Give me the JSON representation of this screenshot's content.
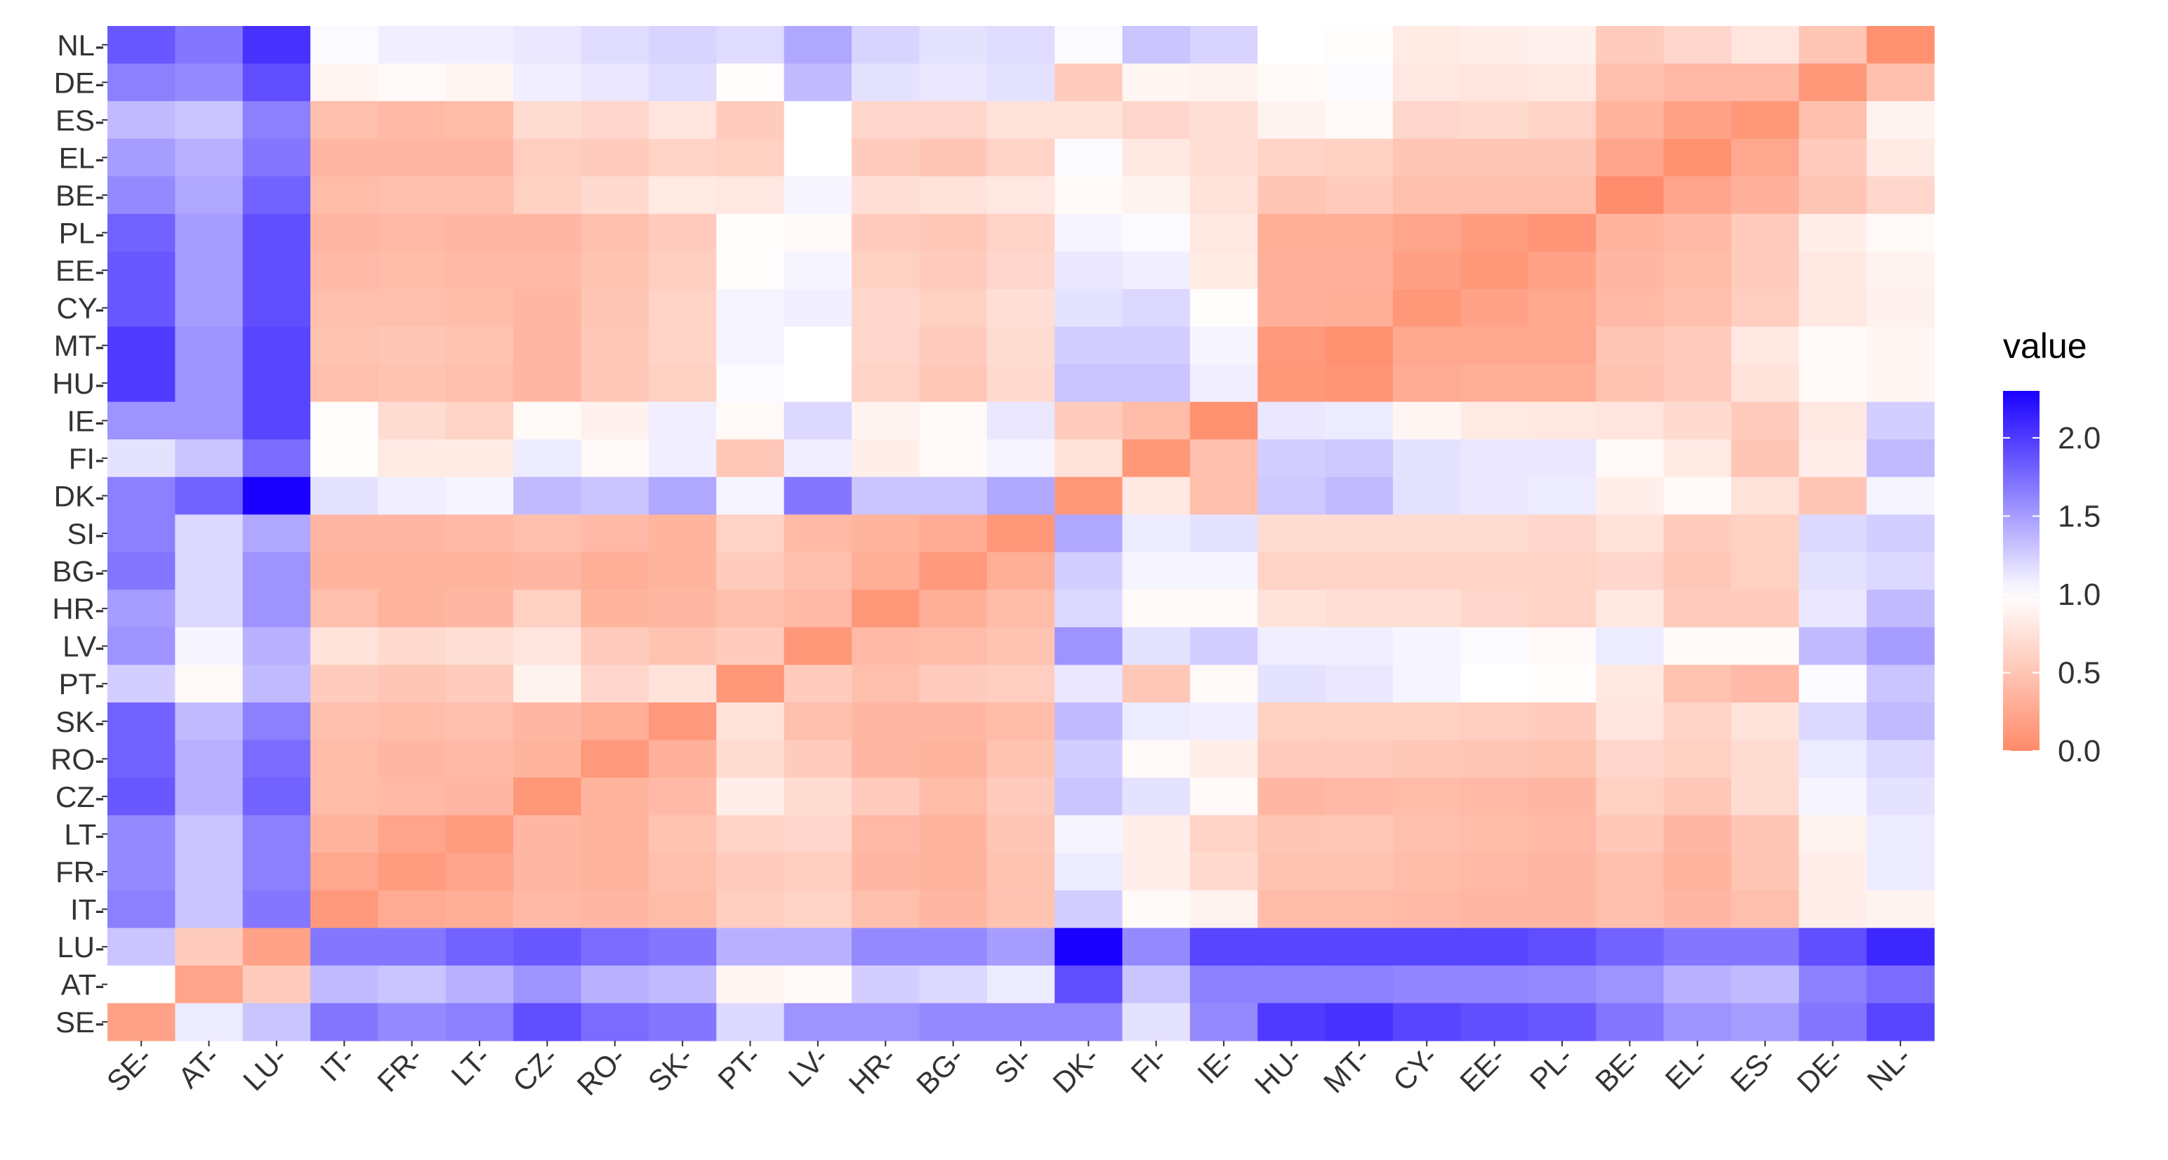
{
  "chart_data": {
    "type": "heatmap",
    "title": "",
    "xlabel": "",
    "ylabel": "",
    "x_categories": [
      "SE",
      "AT",
      "LU",
      "IT",
      "FR",
      "LT",
      "CZ",
      "RO",
      "SK",
      "PT",
      "LV",
      "HR",
      "BG",
      "SI",
      "DK",
      "FI",
      "IE",
      "HU",
      "MT",
      "CY",
      "EE",
      "PL",
      "BE",
      "EL",
      "ES",
      "DE",
      "NL"
    ],
    "y_categories": [
      "NL",
      "DE",
      "ES",
      "EL",
      "BE",
      "PL",
      "EE",
      "CY",
      "MT",
      "HU",
      "IE",
      "FI",
      "DK",
      "SI",
      "BG",
      "HR",
      "LV",
      "PT",
      "SK",
      "RO",
      "CZ",
      "LT",
      "FR",
      "IT",
      "LU",
      "AT",
      "SE"
    ],
    "tick_suffix": "-",
    "values": [
      [
        1.85,
        1.7,
        2.05,
        1.02,
        1.08,
        1.08,
        1.12,
        1.18,
        1.22,
        1.18,
        1.45,
        1.22,
        1.15,
        1.18,
        1.02,
        1.3,
        1.22,
        1.0,
        0.98,
        0.82,
        0.85,
        0.88,
        0.55,
        0.65,
        0.78,
        0.5,
        0.05
      ],
      [
        1.65,
        1.6,
        1.9,
        0.92,
        0.95,
        0.92,
        1.08,
        1.12,
        1.18,
        0.98,
        1.35,
        1.15,
        1.12,
        1.15,
        0.55,
        0.92,
        0.9,
        0.95,
        1.02,
        0.8,
        0.78,
        0.8,
        0.45,
        0.4,
        0.4,
        0.1,
        0.45
      ],
      [
        1.35,
        1.3,
        1.65,
        0.45,
        0.4,
        0.42,
        0.7,
        0.65,
        0.78,
        0.55,
        1.0,
        0.65,
        0.65,
        0.75,
        0.75,
        0.65,
        0.72,
        0.9,
        0.95,
        0.65,
        0.68,
        0.62,
        0.35,
        0.2,
        0.1,
        0.45,
        0.9
      ],
      [
        1.5,
        1.4,
        1.7,
        0.38,
        0.38,
        0.38,
        0.58,
        0.55,
        0.62,
        0.6,
        1.0,
        0.55,
        0.5,
        0.62,
        1.02,
        0.8,
        0.72,
        0.62,
        0.6,
        0.5,
        0.5,
        0.5,
        0.22,
        0.05,
        0.25,
        0.55,
        0.82
      ],
      [
        1.6,
        1.45,
        1.8,
        0.42,
        0.45,
        0.45,
        0.6,
        0.68,
        0.82,
        0.8,
        1.05,
        0.72,
        0.75,
        0.8,
        0.95,
        0.9,
        0.75,
        0.5,
        0.55,
        0.45,
        0.45,
        0.45,
        0.02,
        0.22,
        0.32,
        0.5,
        0.65
      ],
      [
        1.8,
        1.5,
        1.9,
        0.38,
        0.4,
        0.38,
        0.38,
        0.45,
        0.55,
        0.98,
        0.95,
        0.55,
        0.52,
        0.62,
        1.05,
        1.02,
        0.8,
        0.3,
        0.3,
        0.22,
        0.15,
        0.08,
        0.35,
        0.4,
        0.55,
        0.85,
        0.95
      ],
      [
        1.85,
        1.5,
        1.9,
        0.4,
        0.42,
        0.4,
        0.4,
        0.48,
        0.58,
        0.98,
        1.05,
        0.6,
        0.55,
        0.65,
        1.12,
        1.08,
        0.82,
        0.32,
        0.32,
        0.18,
        0.1,
        0.2,
        0.38,
        0.42,
        0.55,
        0.8,
        0.9
      ],
      [
        1.85,
        1.5,
        1.9,
        0.45,
        0.45,
        0.43,
        0.38,
        0.5,
        0.62,
        1.05,
        1.08,
        0.65,
        0.6,
        0.72,
        1.15,
        1.2,
        0.98,
        0.32,
        0.3,
        0.1,
        0.2,
        0.25,
        0.4,
        0.45,
        0.58,
        0.8,
        0.88
      ],
      [
        2.0,
        1.55,
        1.95,
        0.48,
        0.5,
        0.48,
        0.38,
        0.52,
        0.62,
        1.05,
        1.0,
        0.65,
        0.55,
        0.7,
        1.25,
        1.25,
        1.05,
        0.12,
        0.05,
        0.25,
        0.25,
        0.25,
        0.5,
        0.55,
        0.8,
        0.95,
        0.92
      ],
      [
        2.0,
        1.55,
        1.95,
        0.45,
        0.48,
        0.45,
        0.38,
        0.52,
        0.6,
        1.02,
        1.0,
        0.62,
        0.52,
        0.68,
        1.3,
        1.3,
        1.08,
        0.1,
        0.08,
        0.28,
        0.3,
        0.3,
        0.48,
        0.55,
        0.75,
        0.95,
        0.92
      ],
      [
        1.55,
        1.55,
        1.95,
        0.98,
        0.7,
        0.62,
        0.95,
        0.88,
        1.08,
        0.95,
        1.2,
        0.9,
        0.95,
        1.12,
        0.55,
        0.42,
        0.05,
        1.12,
        1.1,
        0.92,
        0.82,
        0.8,
        0.78,
        0.68,
        0.55,
        0.8,
        1.25
      ],
      [
        1.15,
        1.3,
        1.75,
        0.98,
        0.82,
        0.82,
        1.1,
        0.95,
        1.08,
        0.52,
        1.08,
        0.85,
        0.95,
        1.05,
        0.75,
        0.1,
        0.45,
        1.25,
        1.28,
        1.15,
        1.12,
        1.12,
        0.95,
        0.82,
        0.5,
        0.85,
        1.35
      ],
      [
        1.65,
        1.8,
        2.3,
        1.15,
        1.08,
        1.05,
        1.35,
        1.3,
        1.45,
        1.05,
        1.7,
        1.3,
        1.3,
        1.45,
        0.1,
        0.8,
        0.45,
        1.28,
        1.35,
        1.15,
        1.12,
        1.1,
        0.85,
        0.95,
        0.75,
        0.5,
        1.05
      ],
      [
        1.65,
        1.2,
        1.45,
        0.38,
        0.38,
        0.4,
        0.45,
        0.4,
        0.35,
        0.62,
        0.4,
        0.35,
        0.28,
        0.1,
        1.45,
        1.1,
        1.15,
        0.7,
        0.7,
        0.7,
        0.7,
        0.65,
        0.75,
        0.55,
        0.6,
        1.2,
        1.25
      ],
      [
        1.7,
        1.2,
        1.55,
        0.35,
        0.35,
        0.35,
        0.38,
        0.3,
        0.35,
        0.55,
        0.45,
        0.3,
        0.12,
        0.3,
        1.25,
        1.05,
        1.05,
        0.62,
        0.62,
        0.62,
        0.62,
        0.62,
        0.65,
        0.52,
        0.6,
        1.15,
        1.2
      ],
      [
        1.5,
        1.2,
        1.55,
        0.45,
        0.35,
        0.38,
        0.6,
        0.35,
        0.38,
        0.45,
        0.4,
        0.1,
        0.3,
        0.42,
        1.2,
        0.95,
        0.95,
        0.75,
        0.72,
        0.72,
        0.65,
        0.62,
        0.8,
        0.55,
        0.55,
        1.12,
        1.35
      ],
      [
        1.55,
        1.05,
        1.4,
        0.75,
        0.68,
        0.72,
        0.78,
        0.55,
        0.48,
        0.55,
        0.1,
        0.4,
        0.42,
        0.48,
        1.55,
        1.15,
        1.25,
        1.08,
        1.08,
        1.05,
        1.02,
        0.95,
        1.1,
        0.95,
        0.95,
        1.35,
        1.5
      ],
      [
        1.25,
        0.95,
        1.35,
        0.55,
        0.5,
        0.55,
        0.9,
        0.65,
        0.75,
        0.1,
        0.55,
        0.45,
        0.55,
        0.58,
        1.12,
        0.52,
        0.95,
        1.15,
        1.12,
        1.05,
        1.0,
        0.98,
        0.8,
        0.48,
        0.4,
        1.02,
        1.3
      ],
      [
        1.8,
        1.35,
        1.65,
        0.45,
        0.42,
        0.45,
        0.38,
        0.3,
        0.12,
        0.75,
        0.45,
        0.38,
        0.38,
        0.42,
        1.35,
        1.1,
        1.08,
        0.6,
        0.6,
        0.6,
        0.58,
        0.55,
        0.78,
        0.62,
        0.75,
        1.2,
        1.35
      ],
      [
        1.8,
        1.4,
        1.75,
        0.42,
        0.38,
        0.4,
        0.35,
        0.12,
        0.32,
        0.7,
        0.55,
        0.38,
        0.35,
        0.48,
        1.25,
        0.95,
        0.85,
        0.55,
        0.55,
        0.52,
        0.5,
        0.48,
        0.65,
        0.6,
        0.7,
        1.1,
        1.2
      ],
      [
        1.85,
        1.4,
        1.8,
        0.42,
        0.4,
        0.38,
        0.1,
        0.35,
        0.4,
        0.85,
        0.7,
        0.55,
        0.42,
        0.55,
        1.3,
        1.15,
        0.95,
        0.38,
        0.4,
        0.42,
        0.4,
        0.38,
        0.6,
        0.52,
        0.7,
        1.05,
        1.15
      ],
      [
        1.6,
        1.3,
        1.65,
        0.35,
        0.22,
        0.15,
        0.38,
        0.35,
        0.48,
        0.62,
        0.65,
        0.4,
        0.35,
        0.5,
        1.05,
        0.85,
        0.62,
        0.5,
        0.52,
        0.45,
        0.42,
        0.4,
        0.52,
        0.38,
        0.5,
        0.9,
        1.1
      ],
      [
        1.6,
        1.3,
        1.65,
        0.25,
        0.15,
        0.22,
        0.38,
        0.35,
        0.45,
        0.55,
        0.58,
        0.38,
        0.35,
        0.48,
        1.1,
        0.85,
        0.68,
        0.48,
        0.48,
        0.42,
        0.4,
        0.38,
        0.45,
        0.35,
        0.5,
        0.85,
        1.1
      ],
      [
        1.65,
        1.3,
        1.7,
        0.12,
        0.28,
        0.3,
        0.4,
        0.38,
        0.42,
        0.58,
        0.62,
        0.45,
        0.38,
        0.48,
        1.25,
        0.95,
        0.9,
        0.42,
        0.42,
        0.4,
        0.38,
        0.38,
        0.45,
        0.38,
        0.45,
        0.85,
        0.9
      ],
      [
        1.3,
        0.55,
        0.2,
        1.7,
        1.7,
        1.8,
        1.85,
        1.75,
        1.7,
        1.4,
        1.4,
        1.6,
        1.6,
        1.5,
        2.3,
        1.6,
        1.95,
        1.95,
        1.95,
        1.95,
        1.95,
        1.9,
        1.8,
        1.7,
        1.7,
        1.9,
        2.1
      ],
      [
        1.0,
        0.22,
        0.55,
        1.35,
        1.3,
        1.4,
        1.55,
        1.4,
        1.35,
        0.92,
        0.95,
        1.25,
        1.2,
        1.1,
        1.9,
        1.3,
        1.65,
        1.65,
        1.65,
        1.62,
        1.62,
        1.6,
        1.55,
        1.4,
        1.35,
        1.65,
        1.75
      ],
      [
        0.2,
        1.1,
        1.3,
        1.7,
        1.6,
        1.65,
        1.9,
        1.75,
        1.7,
        1.2,
        1.55,
        1.55,
        1.6,
        1.6,
        1.6,
        1.15,
        1.6,
        2.0,
        2.05,
        1.95,
        1.9,
        1.85,
        1.7,
        1.55,
        1.5,
        1.7,
        1.95
      ]
    ],
    "legend": {
      "title": "value",
      "position": "right",
      "ticks": [
        "0.0",
        "0.5",
        "1.0",
        "1.5",
        "2.0"
      ],
      "tick_values": [
        0.0,
        0.5,
        1.0,
        1.5,
        2.0
      ],
      "range": [
        0.0,
        2.3
      ]
    },
    "color_scale": {
      "low": "#ff8b6a",
      "mid": "#ffffff",
      "high": "#1a00ff",
      "midpoint": 1.0
    },
    "panel_background": "#ffffff",
    "grid_color": "#ebebeb",
    "grid": true
  }
}
